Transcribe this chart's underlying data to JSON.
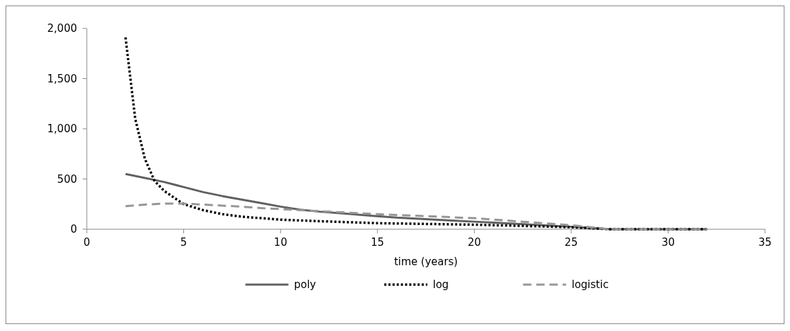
{
  "chart_data": {
    "type": "line",
    "xlabel": "time (years)",
    "xlim": [
      0,
      35
    ],
    "xticks": [
      0,
      5,
      10,
      15,
      20,
      25,
      30,
      35
    ],
    "ylim": [
      0,
      2000
    ],
    "yticks": [
      0,
      {
        "value": 500,
        "label": "500"
      },
      {
        "value": 1000,
        "label": "1,000"
      },
      {
        "value": 1500,
        "label": "1,500"
      },
      {
        "value": 2000,
        "label": "2,000"
      }
    ],
    "grid": false,
    "legend": "bottom",
    "series": [
      {
        "name": "poly",
        "color": "#606060",
        "line_style": "solid",
        "x": [
          2,
          3,
          4,
          5,
          6,
          7,
          8,
          9,
          10,
          11,
          12,
          13,
          14,
          15,
          16,
          17,
          18,
          19,
          20,
          21,
          22,
          23,
          24,
          25,
          26,
          27,
          28,
          29,
          30,
          31,
          32
        ],
        "values": [
          550,
          510,
          470,
          420,
          370,
          330,
          295,
          260,
          225,
          195,
          175,
          160,
          145,
          130,
          115,
          105,
          95,
          85,
          75,
          65,
          55,
          45,
          35,
          25,
          12,
          0,
          0,
          0,
          0,
          0,
          0
        ]
      },
      {
        "name": "log",
        "color": "#000000",
        "line_style": "dotted",
        "x": [
          2,
          2.5,
          3,
          3.5,
          4,
          5,
          6,
          7,
          8,
          9,
          10,
          12,
          15,
          20,
          25,
          27,
          28,
          30,
          32
        ],
        "values": [
          1910,
          1100,
          700,
          480,
          380,
          250,
          190,
          150,
          125,
          110,
          95,
          80,
          60,
          45,
          20,
          0,
          0,
          0,
          0
        ]
      },
      {
        "name": "logistic",
        "color": "#969696",
        "line_style": "dashed",
        "x": [
          2,
          3,
          4,
          5,
          6,
          7,
          8,
          9,
          10,
          12,
          15,
          20,
          25,
          27,
          28,
          30,
          32
        ],
        "values": [
          230,
          245,
          255,
          255,
          245,
          235,
          225,
          210,
          200,
          180,
          150,
          110,
          40,
          0,
          0,
          0,
          0
        ]
      }
    ]
  }
}
